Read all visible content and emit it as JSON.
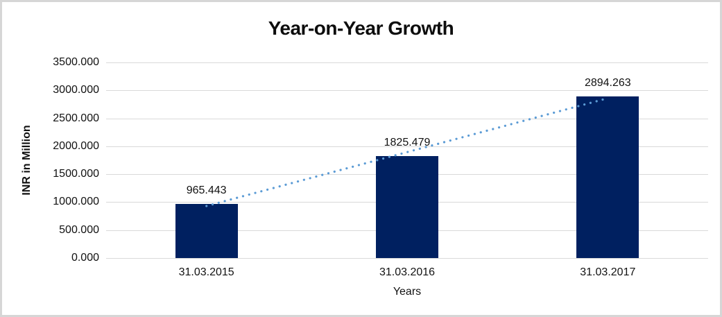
{
  "chart": {
    "title": "Year-on-Year Growth",
    "xlabel": "Years",
    "ylabel": "INR in Million"
  },
  "chart_data": {
    "type": "bar",
    "title": "Year-on-Year Growth",
    "xlabel": "Years",
    "ylabel": "INR in Million",
    "categories": [
      "31.03.2015",
      "31.03.2016",
      "31.03.2017"
    ],
    "values": [
      965.443,
      1825.479,
      2894.263
    ],
    "data_labels": [
      "965.443",
      "1825.479",
      "2894.263"
    ],
    "yticks": [
      0,
      500,
      1000,
      1500,
      2000,
      2500,
      3000,
      3500
    ],
    "ytick_labels": [
      "0.000",
      "500.000",
      "1000.000",
      "1500.000",
      "2000.000",
      "2500.000",
      "3000.000",
      "3500.000"
    ],
    "ylim": [
      0,
      3500
    ],
    "grid": true,
    "legend": false,
    "bar_color": "#002060",
    "gridline_color": "#d9d9d9",
    "trendline": {
      "type": "linear",
      "style": "dotted",
      "color": "#5b9bd5"
    }
  }
}
